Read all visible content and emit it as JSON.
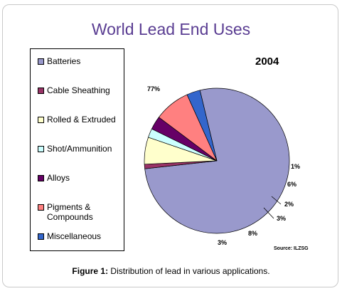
{
  "chart_data": {
    "type": "pie",
    "title": "World Lead End Uses",
    "subtitle": "2004",
    "source": "Source: ILZSG",
    "legend_placement": "left",
    "slices": [
      {
        "label": "Batteries",
        "value": 77,
        "value_label": "77%",
        "color": "#9999cc"
      },
      {
        "label": "Cable Sheathing",
        "value": 1,
        "value_label": "1%",
        "color": "#993366"
      },
      {
        "label": "Rolled & Extruded",
        "value": 6,
        "value_label": "6%",
        "color": "#ffffcc"
      },
      {
        "label": "Shot/Ammunition",
        "value": 2,
        "value_label": "2%",
        "color": "#ccffff"
      },
      {
        "label": "Alloys",
        "value": 3,
        "value_label": "3%",
        "color": "#660066"
      },
      {
        "label": "Pigments & Compounds",
        "value": 8,
        "value_label": "8%",
        "color": "#ff8080"
      },
      {
        "label": "Miscellaneous",
        "value": 3,
        "value_label": "3%",
        "color": "#3366cc"
      }
    ]
  },
  "caption": {
    "prefix": "Figure 1:",
    "text": " Distribution of lead in various applications."
  }
}
